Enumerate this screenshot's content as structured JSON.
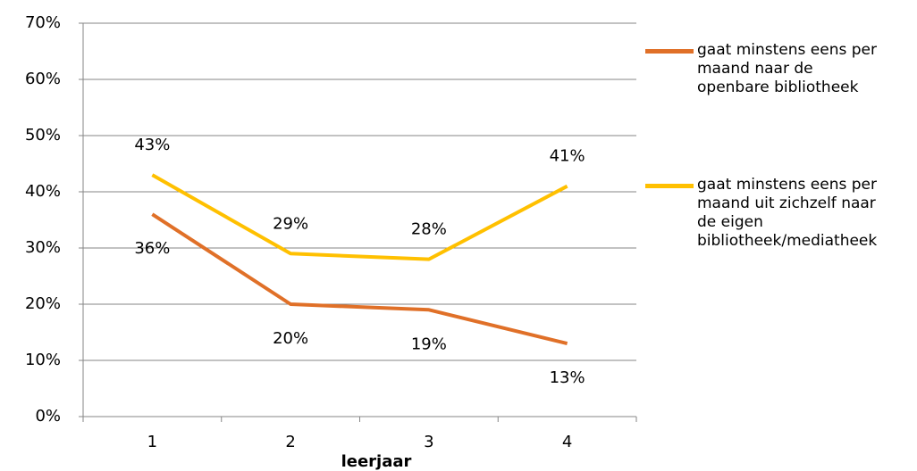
{
  "chart_data": {
    "type": "line",
    "x_label": "leerjaar",
    "categories": [
      "1",
      "2",
      "3",
      "4"
    ],
    "series": [
      {
        "name": "gaat minstens eens per maand naar de openbare bibliotheek",
        "color": "#e07028",
        "values": [
          36,
          20,
          19,
          13
        ],
        "value_labels": [
          "36%",
          "20%",
          "19%",
          "13%"
        ]
      },
      {
        "name": "gaat minstens eens per maand uit zichzelf naar de eigen bibliotheek/mediatheek",
        "color": "#ffc000",
        "values": [
          43,
          29,
          28,
          41
        ],
        "value_labels": [
          "43%",
          "29%",
          "28%",
          "41%"
        ]
      }
    ],
    "ylim": [
      0,
      70
    ],
    "yticks": [
      {
        "value": 0,
        "label": "0%"
      },
      {
        "value": 10,
        "label": "10%"
      },
      {
        "value": 20,
        "label": "20%"
      },
      {
        "value": 30,
        "label": "30%"
      },
      {
        "value": 40,
        "label": "40%"
      },
      {
        "value": 50,
        "label": "50%"
      },
      {
        "value": 60,
        "label": "60%"
      },
      {
        "value": 70,
        "label": "70%"
      }
    ],
    "grid": true,
    "legend": "right"
  }
}
